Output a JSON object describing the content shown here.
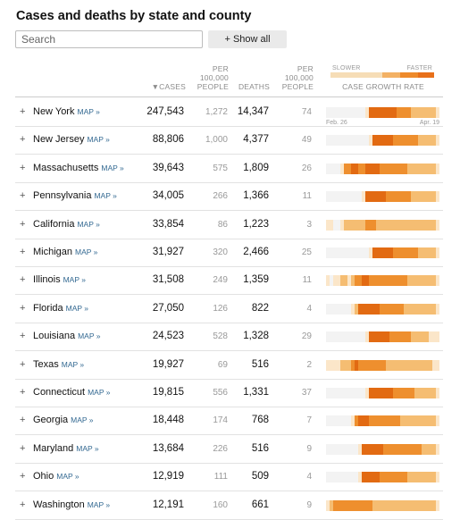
{
  "title": "Cases and deaths by state and county",
  "search": {
    "placeholder": "Search"
  },
  "show_all_label": "+ Show all",
  "headers": {
    "cases": "▼CASES",
    "per_cases": [
      "PER",
      "100,000",
      "PEOPLE"
    ],
    "deaths": "DEATHS",
    "per_deaths": [
      "PER",
      "100,000",
      "PEOPLE"
    ],
    "growth": "CASE GROWTH RATE",
    "slower": "SLOWER",
    "faster": "FASTER"
  },
  "dates": {
    "start": "Feb. 26",
    "end": "Apr. 19"
  },
  "map_label": "MAP »",
  "legend_colors": [
    "#f6ddb6",
    "#f3b164",
    "#ee8a2b",
    "#e8701a"
  ],
  "rows": [
    {
      "state": "New York",
      "cases": "247,543",
      "per_cases": "1,272",
      "deaths": "14,347",
      "per_deaths": "74",
      "growth": [
        0,
        0,
        0,
        0,
        0,
        0,
        0,
        0,
        0,
        0,
        0,
        1,
        4,
        4,
        4,
        4,
        4,
        4,
        4,
        4,
        3,
        3,
        3,
        3,
        2,
        2,
        2,
        2,
        2,
        2,
        2,
        1
      ]
    },
    {
      "state": "New Jersey",
      "cases": "88,806",
      "per_cases": "1,000",
      "deaths": "4,377",
      "per_deaths": "49",
      "growth": [
        0,
        0,
        0,
        0,
        0,
        0,
        0,
        0,
        0,
        0,
        0,
        0,
        1,
        4,
        4,
        4,
        4,
        4,
        4,
        3,
        3,
        3,
        3,
        3,
        3,
        3,
        2,
        2,
        2,
        2,
        2,
        1
      ]
    },
    {
      "state": "Massachusetts",
      "cases": "39,643",
      "per_cases": "575",
      "deaths": "1,809",
      "per_deaths": "26",
      "growth": [
        0,
        0,
        0,
        0,
        1,
        3,
        3,
        4,
        4,
        3,
        3,
        4,
        4,
        4,
        4,
        3,
        3,
        3,
        3,
        3,
        3,
        3,
        3,
        2,
        2,
        2,
        2,
        2,
        2,
        2,
        2,
        1
      ]
    },
    {
      "state": "Pennsylvania",
      "cases": "34,005",
      "per_cases": "266",
      "deaths": "1,366",
      "per_deaths": "11",
      "growth": [
        0,
        0,
        0,
        0,
        0,
        0,
        0,
        0,
        0,
        0,
        1,
        4,
        4,
        4,
        4,
        4,
        4,
        3,
        3,
        3,
        3,
        3,
        3,
        3,
        2,
        2,
        2,
        2,
        2,
        2,
        2,
        1
      ]
    },
    {
      "state": "California",
      "cases": "33,854",
      "per_cases": "86",
      "deaths": "1,223",
      "per_deaths": "3",
      "growth": [
        1,
        1,
        0,
        0,
        1,
        2,
        2,
        2,
        2,
        2,
        2,
        3,
        3,
        3,
        2,
        2,
        2,
        2,
        2,
        2,
        2,
        2,
        2,
        2,
        2,
        2,
        2,
        2,
        2,
        2,
        2,
        1
      ]
    },
    {
      "state": "Michigan",
      "cases": "31,927",
      "per_cases": "320",
      "deaths": "2,466",
      "per_deaths": "25",
      "growth": [
        0,
        0,
        0,
        0,
        0,
        0,
        0,
        0,
        0,
        0,
        0,
        0,
        1,
        4,
        4,
        4,
        4,
        4,
        4,
        3,
        3,
        3,
        3,
        3,
        3,
        3,
        2,
        2,
        2,
        2,
        2,
        1
      ]
    },
    {
      "state": "Illinois",
      "cases": "31,508",
      "per_cases": "249",
      "deaths": "1,359",
      "per_deaths": "11",
      "growth": [
        1,
        0,
        1,
        1,
        2,
        2,
        1,
        2,
        3,
        3,
        4,
        4,
        3,
        3,
        3,
        3,
        3,
        3,
        3,
        3,
        3,
        3,
        3,
        2,
        2,
        2,
        2,
        2,
        2,
        2,
        2,
        1
      ]
    },
    {
      "state": "Florida",
      "cases": "27,050",
      "per_cases": "126",
      "deaths": "822",
      "per_deaths": "4",
      "growth": [
        0,
        0,
        0,
        0,
        0,
        0,
        0,
        1,
        2,
        4,
        4,
        4,
        4,
        4,
        4,
        3,
        3,
        3,
        3,
        3,
        3,
        3,
        2,
        2,
        2,
        2,
        2,
        2,
        2,
        2,
        2,
        1
      ]
    },
    {
      "state": "Louisiana",
      "cases": "24,523",
      "per_cases": "528",
      "deaths": "1,328",
      "per_deaths": "29",
      "growth": [
        0,
        0,
        0,
        0,
        0,
        0,
        0,
        0,
        0,
        0,
        0,
        1,
        4,
        4,
        4,
        4,
        4,
        4,
        3,
        3,
        3,
        3,
        3,
        3,
        2,
        2,
        2,
        2,
        2,
        1,
        1,
        1
      ]
    },
    {
      "state": "Texas",
      "cases": "19,927",
      "per_cases": "69",
      "deaths": "516",
      "per_deaths": "2",
      "growth": [
        1,
        1,
        1,
        1,
        2,
        2,
        2,
        3,
        4,
        3,
        3,
        3,
        3,
        3,
        3,
        3,
        3,
        2,
        2,
        2,
        2,
        2,
        2,
        2,
        2,
        2,
        2,
        2,
        2,
        2,
        1,
        1
      ]
    },
    {
      "state": "Connecticut",
      "cases": "19,815",
      "per_cases": "556",
      "deaths": "1,331",
      "per_deaths": "37",
      "growth": [
        0,
        0,
        0,
        0,
        0,
        0,
        0,
        0,
        0,
        0,
        0,
        1,
        4,
        4,
        4,
        4,
        4,
        4,
        4,
        3,
        3,
        3,
        3,
        3,
        3,
        2,
        2,
        2,
        2,
        2,
        2,
        1
      ]
    },
    {
      "state": "Georgia",
      "cases": "18,448",
      "per_cases": "174",
      "deaths": "768",
      "per_deaths": "7",
      "growth": [
        0,
        0,
        0,
        0,
        0,
        0,
        0,
        1,
        3,
        4,
        4,
        4,
        3,
        3,
        3,
        3,
        3,
        3,
        3,
        3,
        3,
        2,
        2,
        2,
        2,
        2,
        2,
        2,
        2,
        2,
        2,
        1
      ]
    },
    {
      "state": "Maryland",
      "cases": "13,684",
      "per_cases": "226",
      "deaths": "516",
      "per_deaths": "9",
      "growth": [
        0,
        0,
        0,
        0,
        0,
        0,
        0,
        0,
        0,
        1,
        4,
        4,
        4,
        4,
        4,
        4,
        3,
        3,
        3,
        3,
        3,
        3,
        3,
        3,
        3,
        3,
        3,
        2,
        2,
        2,
        2,
        1
      ]
    },
    {
      "state": "Ohio",
      "cases": "12,919",
      "per_cases": "111",
      "deaths": "509",
      "per_deaths": "4",
      "growth": [
        0,
        0,
        0,
        0,
        0,
        0,
        0,
        0,
        0,
        1,
        4,
        4,
        4,
        4,
        4,
        3,
        3,
        3,
        3,
        3,
        3,
        3,
        3,
        2,
        2,
        2,
        2,
        2,
        2,
        2,
        2,
        1
      ]
    },
    {
      "state": "Washington",
      "cases": "12,191",
      "per_cases": "160",
      "deaths": "661",
      "per_deaths": "9",
      "growth": [
        1,
        2,
        3,
        3,
        3,
        3,
        3,
        3,
        3,
        3,
        3,
        3,
        3,
        2,
        2,
        2,
        2,
        2,
        2,
        2,
        2,
        2,
        2,
        2,
        2,
        2,
        2,
        2,
        2,
        2,
        2,
        1
      ]
    }
  ],
  "growth_palette": [
    "#f3f3f3",
    "#fbe6c9",
    "#f5bd72",
    "#ee8f2e",
    "#e26a12"
  ]
}
